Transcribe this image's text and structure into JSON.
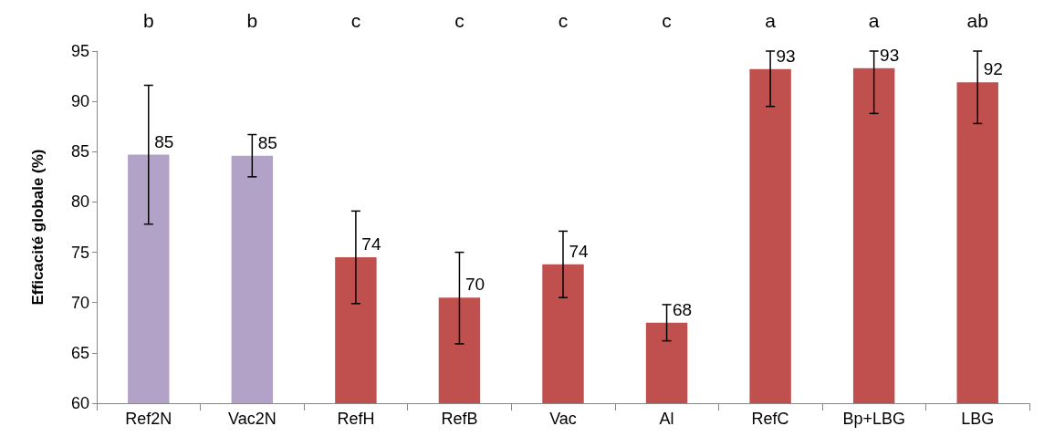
{
  "chart_data": {
    "type": "bar",
    "ylabel": "Efficacité globale (%)",
    "categories": [
      "Ref2N",
      "Vac2N",
      "RefH",
      "RefB",
      "Vac",
      "Al",
      "RefC",
      "Bp+LBG",
      "LBG"
    ],
    "values": [
      84.7,
      84.6,
      74.5,
      70.5,
      73.8,
      68.0,
      93.2,
      93.3,
      91.9
    ],
    "colors": [
      "#b3a2c7",
      "#b3a2c7",
      "#c0504d",
      "#c0504d",
      "#c0504d",
      "#c0504d",
      "#c0504d",
      "#c0504d",
      "#c0504d"
    ],
    "value_labels": [
      "85",
      "85",
      "74",
      "70",
      "74",
      "68",
      "93",
      "93",
      "92"
    ],
    "errors": [
      [
        77.8,
        91.6
      ],
      [
        82.5,
        86.7
      ],
      [
        69.9,
        79.1
      ],
      [
        65.9,
        75.0
      ],
      [
        70.5,
        77.1
      ],
      [
        66.2,
        69.8
      ],
      [
        89.5,
        95
      ],
      [
        88.8,
        95
      ],
      [
        87.8,
        95
      ]
    ],
    "annotations": [
      "b",
      "b",
      "c",
      "c",
      "c",
      "c",
      "a",
      "a",
      "ab"
    ],
    "ylim": [
      60,
      95
    ],
    "yticks": [
      60,
      65,
      70,
      75,
      80,
      85,
      90,
      95
    ],
    "grid": false
  }
}
